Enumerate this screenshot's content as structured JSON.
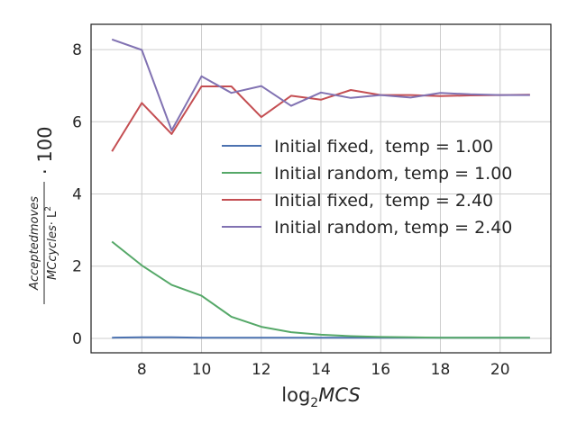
{
  "chart_data": {
    "type": "line",
    "x": [
      7,
      8,
      9,
      10,
      11,
      12,
      13,
      14,
      15,
      16,
      17,
      18,
      19,
      20,
      21
    ],
    "series": [
      {
        "name": "Initial fixed,  temp = 1.00",
        "color": "#4c72b0",
        "values": [
          0.02,
          0.03,
          0.03,
          0.02,
          0.02,
          0.02,
          0.02,
          0.02,
          0.02,
          0.02,
          0.02,
          0.02,
          0.02,
          0.02,
          0.02
        ]
      },
      {
        "name": "Initial random, temp = 1.00",
        "color": "#55a868",
        "values": [
          2.68,
          2.02,
          1.48,
          1.18,
          0.6,
          0.32,
          0.17,
          0.1,
          0.06,
          0.04,
          0.03,
          0.02,
          0.02,
          0.02,
          0.02
        ]
      },
      {
        "name": "Initial fixed,  temp = 2.40",
        "color": "#c44e52",
        "values": [
          5.18,
          6.52,
          5.66,
          6.98,
          6.98,
          6.13,
          6.72,
          6.61,
          6.88,
          6.74,
          6.74,
          6.71,
          6.73,
          6.74,
          6.75
        ]
      },
      {
        "name": "Initial random, temp = 2.40",
        "color": "#8172b2",
        "values": [
          8.28,
          7.99,
          5.76,
          7.26,
          6.8,
          6.99,
          6.44,
          6.81,
          6.66,
          6.74,
          6.67,
          6.8,
          6.76,
          6.74,
          6.74
        ]
      }
    ],
    "xticks": [
      8,
      10,
      12,
      14,
      16,
      18,
      20
    ],
    "yticks": [
      0,
      2,
      4,
      6,
      8
    ],
    "xlim": [
      6.3,
      21.7
    ],
    "ylim": [
      -0.4,
      8.7
    ],
    "xlabel": {
      "prefix": "log",
      "sub": "2",
      "var": "MCS"
    },
    "ylabel": {
      "numerator": "Acceptedmoves",
      "denominator_var": "MCcycles",
      "denominator_rest": "· L",
      "denominator_exp": "2",
      "factor": "· 100"
    },
    "grid": true,
    "legend_position": "center-right"
  }
}
